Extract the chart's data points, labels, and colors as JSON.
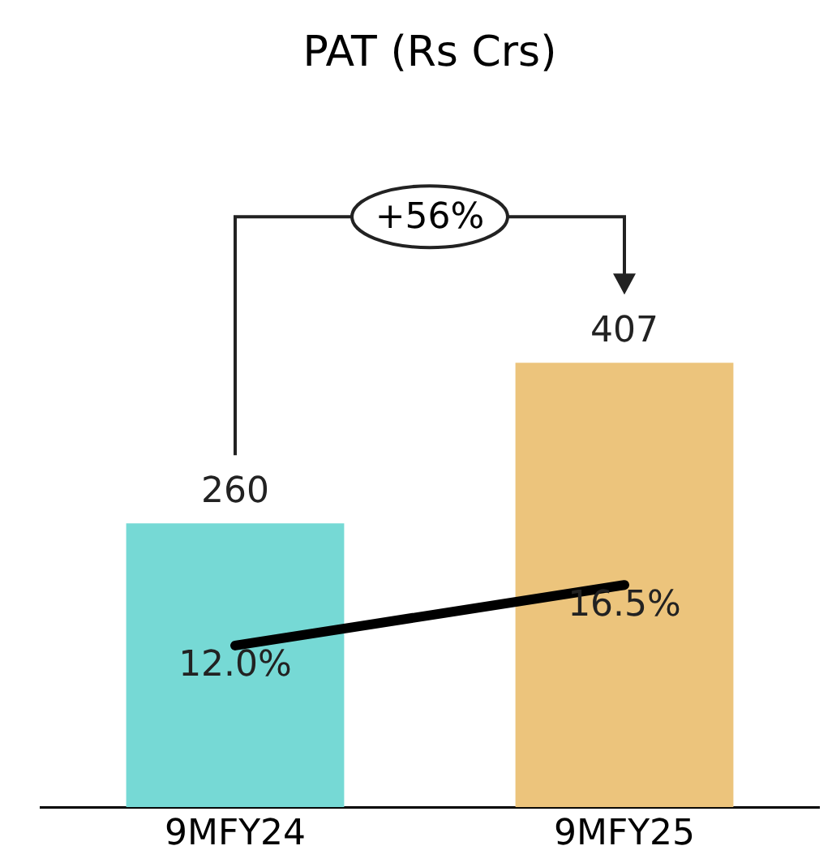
{
  "chart_data": {
    "type": "bar",
    "title": "PAT (Rs Crs)",
    "categories": [
      "9MFY24",
      "9MFY25"
    ],
    "series": [
      {
        "colors": [
          "#76d9d5",
          "#ecc47c"
        ],
        "values": [
          260,
          407
        ]
      },
      {
        "type": "line",
        "axis": "y2",
        "color": "#000000",
        "values": [
          12.0,
          16.5
        ],
        "value_labels": [
          "12.0%",
          "16.5%"
        ]
      }
    ],
    "data_labels": true,
    "tick_labels": "x",
    "legend": false,
    "grid": false,
    "marker": "none",
    "line_style": "solid",
    "annotations": [
      "+56%"
    ]
  }
}
